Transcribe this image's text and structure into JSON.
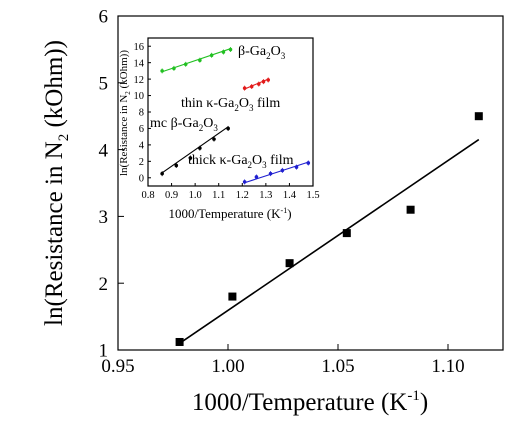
{
  "chart_data": [
    {
      "type": "scatter",
      "xlabel": "1000/Temperature (K",
      "xlabel_sup": "-1",
      "xlabel_end": ")",
      "ylabel": "ln(Resistance in N",
      "ylabel_sub": "2",
      "ylabel_end": " (kOhm))",
      "xlim": [
        0.95,
        1.125
      ],
      "ylim": [
        1,
        6
      ],
      "xticks": [
        0.95,
        1.0,
        1.05,
        1.1
      ],
      "xtick_labels": [
        "0.95",
        "1.00",
        "1.05",
        "1.10"
      ],
      "yticks": [
        1,
        2,
        3,
        4,
        5,
        6
      ],
      "ytick_labels": [
        "1",
        "2",
        "3",
        "4",
        "5",
        "6"
      ],
      "series": [
        {
          "marker": "square",
          "color": "#000000",
          "x": [
            0.978,
            1.002,
            1.028,
            1.054,
            1.083,
            1.114
          ],
          "y": [
            1.12,
            1.8,
            2.3,
            2.75,
            3.1,
            4.5
          ],
          "fit": {
            "x": [
              0.978,
              1.114
            ],
            "y": [
              1.1,
              4.15
            ]
          }
        }
      ]
    },
    {
      "type": "scatter",
      "inset": true,
      "xlabel": "1000/Temperature (K",
      "xlabel_sup": "-1",
      "xlabel_end": ")",
      "ylabel": "ln(Resistance in N",
      "ylabel_sub": "2",
      "ylabel_end": " (kOhm))",
      "xlim": [
        0.8,
        1.5
      ],
      "ylim": [
        -1,
        17
      ],
      "xticks": [
        0.8,
        0.9,
        1.0,
        1.1,
        1.2,
        1.3,
        1.4,
        1.5
      ],
      "xtick_labels": [
        "0.8",
        "0.9",
        "1.0",
        "1.1",
        "1.2",
        "1.3",
        "1.4",
        "1.5"
      ],
      "yticks": [
        0,
        2,
        4,
        6,
        8,
        10,
        12,
        14,
        16
      ],
      "ytick_labels": [
        "0",
        "2",
        "4",
        "6",
        "8",
        "10",
        "12",
        "14",
        "16"
      ],
      "series": [
        {
          "color": "#22c022",
          "x": [
            0.86,
            0.91,
            0.96,
            1.02,
            1.07,
            1.12,
            1.15
          ],
          "y": [
            13.0,
            13.3,
            13.8,
            14.3,
            14.9,
            15.3,
            15.6
          ],
          "fit": {
            "x": [
              0.86,
              1.15
            ],
            "y": [
              12.9,
              15.7
            ]
          }
        },
        {
          "color": "#e21b1b",
          "x": [
            1.21,
            1.24,
            1.27,
            1.29,
            1.31
          ],
          "y": [
            10.9,
            11.1,
            11.4,
            11.7,
            11.9
          ],
          "fit": {
            "x": [
              1.21,
              1.31
            ],
            "y": [
              10.8,
              12.0
            ]
          }
        },
        {
          "color": "#000000",
          "x": [
            0.86,
            0.92,
            0.98,
            1.02,
            1.08,
            1.14
          ],
          "y": [
            0.5,
            1.5,
            2.4,
            3.6,
            4.7,
            6.0
          ],
          "fit": {
            "x": [
              0.86,
              1.14
            ],
            "y": [
              0.6,
              6.2
            ]
          }
        },
        {
          "color": "#2020d0",
          "x": [
            1.21,
            1.26,
            1.32,
            1.37,
            1.43,
            1.48
          ],
          "y": [
            -0.5,
            0.1,
            0.5,
            0.9,
            1.3,
            1.8
          ],
          "fit": {
            "x": [
              1.21,
              1.48
            ],
            "y": [
              -0.6,
              1.9
            ]
          }
        }
      ],
      "labels": [
        {
          "text": "β-Ga",
          "sub": "2",
          "mid": "O",
          "sub2": "3",
          "end": ""
        },
        {
          "text": "thin κ-Ga",
          "sub": "2",
          "mid": "O",
          "sub2": "3",
          "end": " film"
        },
        {
          "text": "mc β-Ga",
          "sub": "2",
          "mid": "O",
          "sub2": "3",
          "end": ""
        },
        {
          "text": "thick κ-Ga",
          "sub": "2",
          "mid": "O",
          "sub2": "3",
          "end": " film"
        }
      ]
    }
  ]
}
